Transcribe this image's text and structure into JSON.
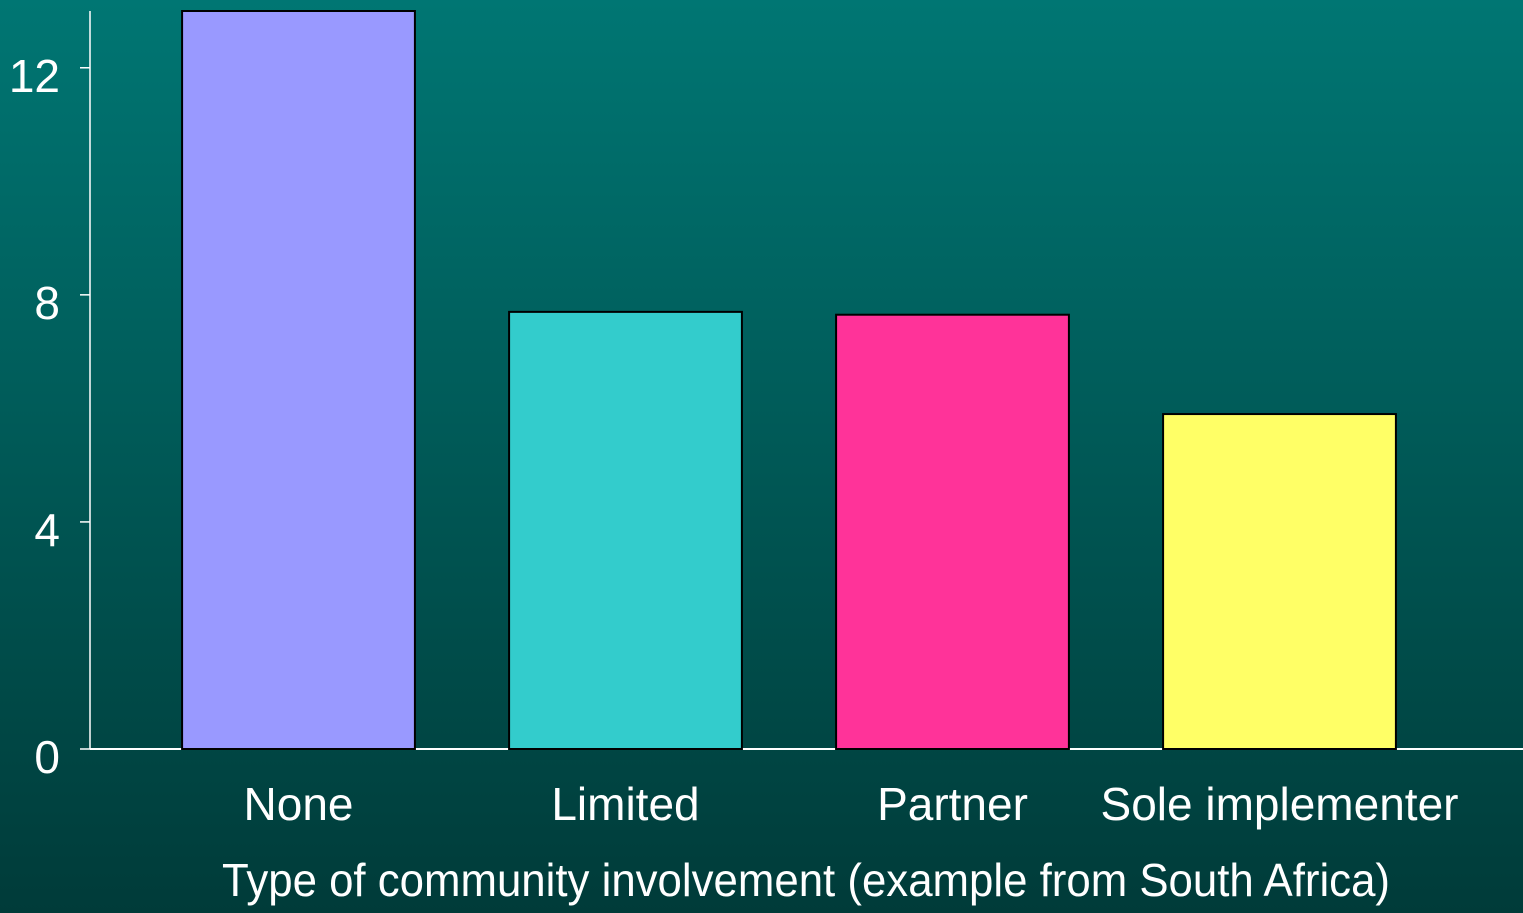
{
  "chart_data": {
    "type": "bar",
    "x_label": "Type of community involvement (example from South Africa)",
    "categories": [
      "None",
      "Limited",
      "Partner",
      "Sole implementer"
    ],
    "values": [
      13.0,
      7.7,
      7.65,
      5.9
    ],
    "colors": [
      "#9999ff",
      "#33cccc",
      "#ff3399",
      "#ffff66"
    ],
    "ylim": [
      0,
      13
    ],
    "yticks": [
      0,
      4,
      8,
      12
    ],
    "grid": false
  }
}
